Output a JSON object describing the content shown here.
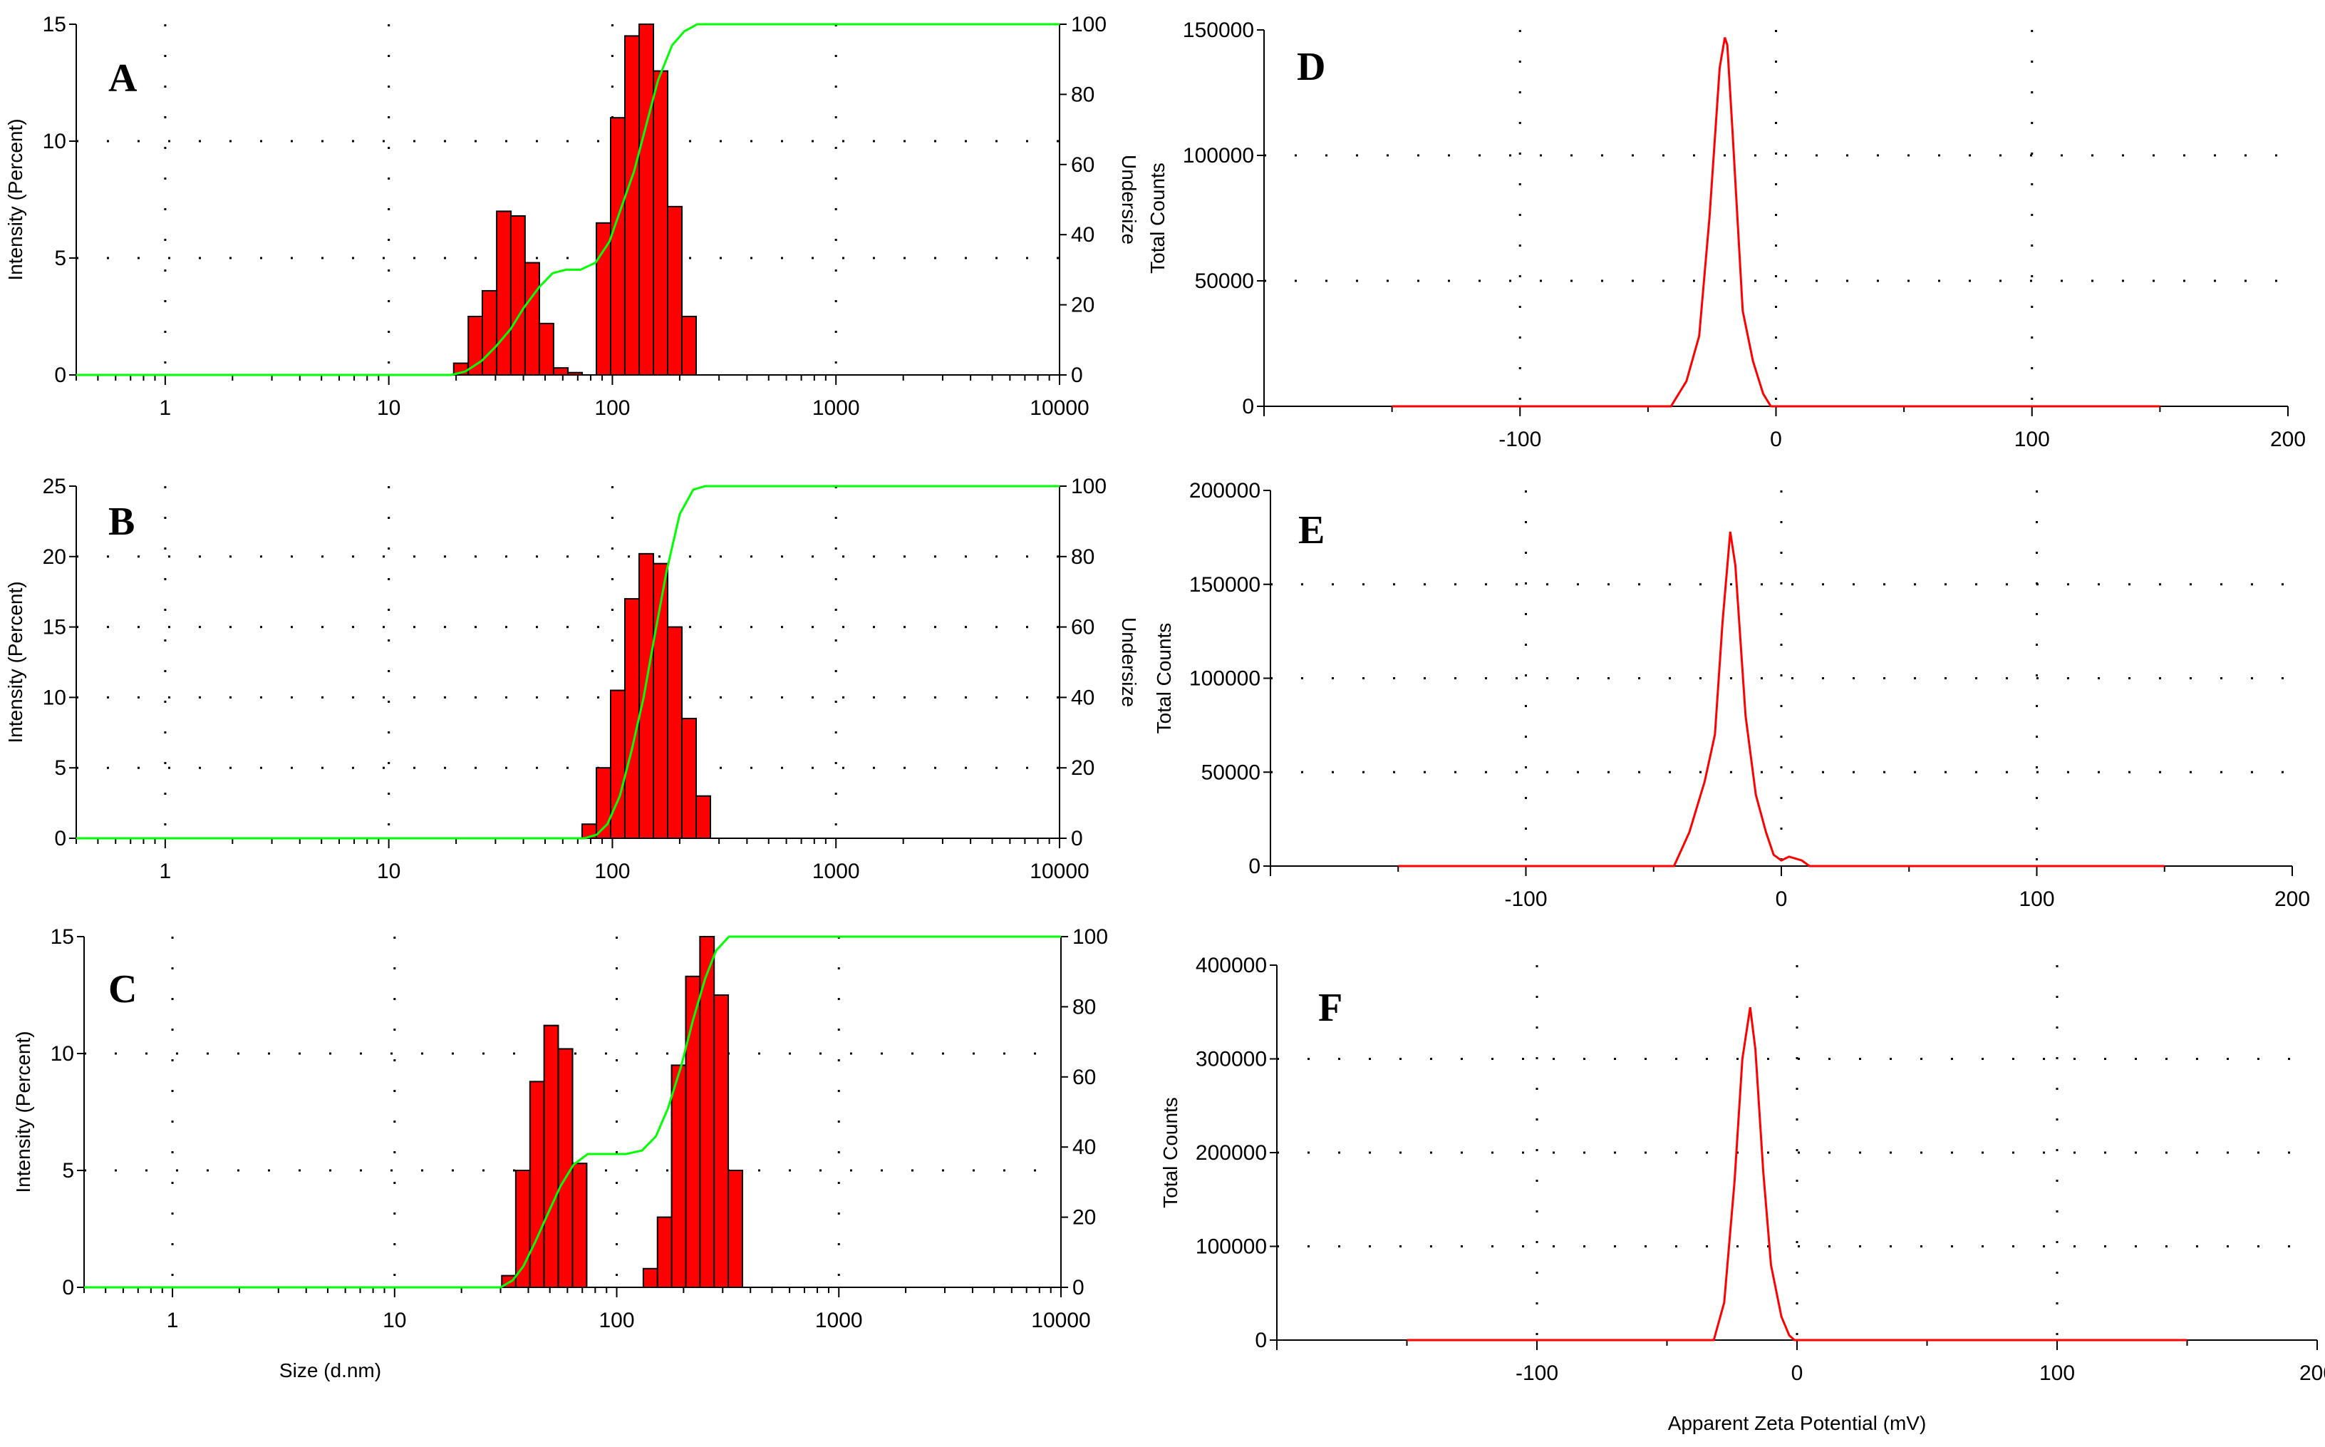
{
  "chart_data": [
    {
      "panel": "A",
      "type": "bar",
      "subtype": "size-distribution",
      "xlabel": "",
      "ylabel": "Intensity (Percent)",
      "y2label": "Undersize",
      "xscale": "log",
      "xlim": [
        0.4,
        10000
      ],
      "ylim": [
        0,
        15
      ],
      "y2lim": [
        0,
        100
      ],
      "xticks": [
        1,
        10,
        100,
        1000,
        10000
      ],
      "xtick_labels": [
        "1",
        "10",
        "100",
        "1000",
        "10000"
      ],
      "yticks": [
        0,
        5,
        10,
        15
      ],
      "ytick_labels": [
        "0",
        "5",
        "10",
        "15"
      ],
      "y2ticks": [
        0,
        20,
        40,
        60,
        80,
        100
      ],
      "y2tick_labels": [
        "0",
        "20",
        "40",
        "60",
        "80",
        "100"
      ],
      "grid": true,
      "bar_color": "#ff0000",
      "curve_color": "#00ff00",
      "series": [
        {
          "name": "Intensity",
          "x": [
            21,
            24.4,
            28.2,
            32.7,
            37.8,
            43.8,
            50.7,
            58.8,
            68.1,
            91.3,
            105.7,
            122.4,
            141.8,
            164.2,
            190.1,
            220.2
          ],
          "values": [
            0.5,
            2.5,
            3.6,
            7,
            6.8,
            4.8,
            2.2,
            0.3,
            0.1,
            6.5,
            11,
            14.5,
            15,
            13,
            7.2,
            2.5
          ]
        },
        {
          "name": "Undersize",
          "x": [
            0.4,
            19,
            22,
            26,
            30,
            35,
            40,
            47,
            54,
            62,
            72,
            84,
            97,
            110,
            125,
            140,
            160,
            185,
            210,
            240,
            10000
          ],
          "values": [
            0,
            0,
            1,
            4,
            8,
            13,
            19,
            25,
            29,
            30,
            30,
            32,
            38,
            48,
            58,
            70,
            84,
            94,
            98,
            100,
            100
          ]
        }
      ]
    },
    {
      "panel": "B",
      "type": "bar",
      "subtype": "size-distribution",
      "xlabel": "",
      "ylabel": "Intensity (Percent)",
      "y2label": "Undersize",
      "xscale": "log",
      "xlim": [
        0.4,
        10000
      ],
      "ylim": [
        0,
        25
      ],
      "y2lim": [
        0,
        100
      ],
      "xticks": [
        1,
        10,
        100,
        1000,
        10000
      ],
      "xtick_labels": [
        "1",
        "10",
        "100",
        "1000",
        "10000"
      ],
      "yticks": [
        0,
        5,
        10,
        15,
        20,
        25
      ],
      "ytick_labels": [
        "0",
        "5",
        "10",
        "15",
        "20",
        "25"
      ],
      "y2ticks": [
        0,
        20,
        40,
        60,
        80,
        100
      ],
      "y2tick_labels": [
        "0",
        "20",
        "40",
        "60",
        "80",
        "100"
      ],
      "grid": true,
      "bar_color": "#ff0000",
      "curve_color": "#00ff00",
      "series": [
        {
          "name": "Intensity",
          "x": [
            78.8,
            91.3,
            105.7,
            122.4,
            141.8,
            164.2,
            190.1,
            220.2,
            255
          ],
          "values": [
            1,
            5,
            10.5,
            17,
            20.2,
            19.5,
            15,
            8.5,
            3
          ]
        },
        {
          "name": "Undersize",
          "x": [
            0.4,
            75,
            85,
            95,
            108,
            122,
            138,
            155,
            175,
            200,
            230,
            260,
            10000
          ],
          "values": [
            0,
            0,
            1,
            4,
            12,
            25,
            40,
            58,
            76,
            92,
            99,
            100,
            100
          ]
        }
      ]
    },
    {
      "panel": "C",
      "type": "bar",
      "subtype": "size-distribution",
      "xlabel": "Size (d.nm)",
      "ylabel": "Intensity (Percent)",
      "y2label": "",
      "xscale": "log",
      "xlim": [
        0.4,
        10000
      ],
      "ylim": [
        0,
        15
      ],
      "y2lim": [
        0,
        100
      ],
      "xticks": [
        1,
        10,
        100,
        1000,
        10000
      ],
      "xtick_labels": [
        "1",
        "10",
        "100",
        "1000",
        "10000"
      ],
      "yticks": [
        0,
        5,
        10,
        15
      ],
      "ytick_labels": [
        "0",
        "5",
        "10",
        "15"
      ],
      "y2ticks": [
        0,
        20,
        40,
        60,
        80,
        100
      ],
      "y2tick_labels": [
        "0",
        "20",
        "40",
        "60",
        "80",
        "100"
      ],
      "grid": true,
      "bar_color": "#ff0000",
      "curve_color": "#00ff00",
      "series": [
        {
          "name": "Intensity",
          "x": [
            32.7,
            37.8,
            43.8,
            50.7,
            58.8,
            68.1,
            141.8,
            164.2,
            190.1,
            220.2,
            255,
            295.3,
            342
          ],
          "values": [
            0.5,
            5,
            8.8,
            11.2,
            10.2,
            5.3,
            0.8,
            3,
            9.5,
            13.3,
            15,
            12.5,
            5
          ]
        },
        {
          "name": "Undersize",
          "x": [
            0.4,
            30,
            34,
            38,
            43,
            49,
            56,
            64,
            74,
            90,
            110,
            130,
            150,
            170,
            195,
            220,
            250,
            280,
            320,
            10000
          ],
          "values": [
            0,
            0,
            2,
            6,
            13,
            21,
            29,
            35,
            38,
            38,
            38,
            39,
            43,
            51,
            63,
            76,
            88,
            96,
            100,
            100
          ]
        }
      ]
    },
    {
      "panel": "D",
      "type": "line",
      "subtype": "zeta-potential",
      "xlabel": "",
      "ylabel": "Total Counts",
      "xlim": [
        -200,
        200
      ],
      "ylim": [
        0,
        150000
      ],
      "xticks": [
        -100,
        0,
        100,
        200
      ],
      "xtick_labels": [
        "-100",
        "0",
        "100",
        "200"
      ],
      "yticks": [
        0,
        50000,
        100000,
        150000
      ],
      "ytick_labels": [
        "0",
        "50000",
        "100000",
        "150000"
      ],
      "grid": true,
      "line_color": "#ff0000",
      "series": [
        {
          "name": "Total Counts",
          "x": [
            -150,
            -41,
            -35,
            -30,
            -26,
            -22,
            -20,
            -19,
            -17,
            -13,
            -9,
            -5,
            -2,
            150
          ],
          "values": [
            0,
            0,
            10000,
            28000,
            75000,
            135000,
            147000,
            144000,
            110000,
            38000,
            18000,
            5000,
            0,
            0
          ]
        }
      ]
    },
    {
      "panel": "E",
      "type": "line",
      "subtype": "zeta-potential",
      "xlabel": "",
      "ylabel": "Total Counts",
      "xlim": [
        -200,
        200
      ],
      "ylim": [
        0,
        200000
      ],
      "xticks": [
        -100,
        0,
        100,
        200
      ],
      "xtick_labels": [
        "-100",
        "0",
        "100",
        "200"
      ],
      "yticks": [
        0,
        50000,
        100000,
        150000,
        200000
      ],
      "ytick_labels": [
        "0",
        "50000",
        "100000",
        "150000",
        "200000"
      ],
      "grid": true,
      "line_color": "#ff0000",
      "series": [
        {
          "name": "Total Counts",
          "x": [
            -150,
            -42,
            -36,
            -30,
            -26,
            -23,
            -20,
            -18,
            -14,
            -10,
            -6,
            -3,
            0,
            3,
            8,
            11,
            150
          ],
          "values": [
            0,
            0,
            18000,
            45000,
            70000,
            130000,
            178000,
            160000,
            80000,
            38000,
            18000,
            6000,
            3000,
            5000,
            3000,
            0,
            0
          ]
        }
      ]
    },
    {
      "panel": "F",
      "type": "line",
      "subtype": "zeta-potential",
      "xlabel": "Apparent Zeta Potential (mV)",
      "ylabel": "Total Counts",
      "xlim": [
        -200,
        200
      ],
      "ylim": [
        0,
        400000
      ],
      "xticks": [
        -100,
        0,
        100,
        200
      ],
      "xtick_labels": [
        "-100",
        "0",
        "100",
        "200"
      ],
      "yticks": [
        0,
        100000,
        200000,
        300000,
        400000
      ],
      "ytick_labels": [
        "0",
        "100000",
        "200000",
        "300000",
        "400000"
      ],
      "grid": true,
      "line_color": "#ff0000",
      "series": [
        {
          "name": "Total Counts",
          "x": [
            -150,
            -32,
            -28,
            -24,
            -21,
            -18,
            -16,
            -13,
            -10,
            -6,
            -3,
            -1,
            150
          ],
          "values": [
            0,
            0,
            40000,
            170000,
            300000,
            355000,
            310000,
            180000,
            80000,
            25000,
            5000,
            0,
            0
          ]
        }
      ]
    }
  ]
}
